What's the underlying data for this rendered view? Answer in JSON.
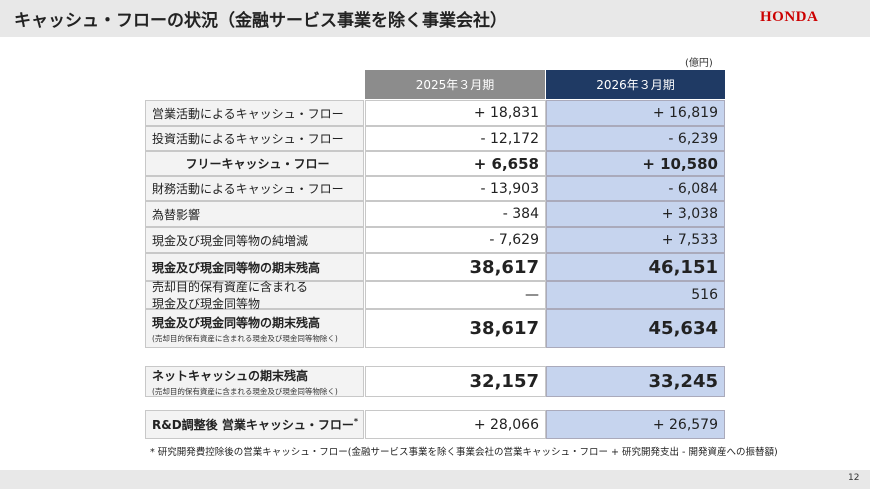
{
  "header": {
    "title": "キャッシュ・フローの状況（金融サービス事業を除く事業会社）",
    "logo": "HONDA"
  },
  "unit": "(億円)",
  "columns": [
    "2025年３月期",
    "2026年３月期"
  ],
  "rows": [
    {
      "label": "営業活動によるキャッシュ・フロー",
      "values": [
        "+ 18,831",
        "+ 16,819"
      ],
      "bold": false
    },
    {
      "label": "投資活動によるキャッシュ・フロー",
      "values": [
        "- 12,172",
        "- 6,239"
      ],
      "bold": false
    },
    {
      "label": "フリーキャッシュ・フロー",
      "values": [
        "+ 6,658",
        "+ 10,580"
      ],
      "bold": true,
      "center": true
    },
    {
      "label": "財務活動によるキャッシュ・フロー",
      "values": [
        "- 13,903",
        "- 6,084"
      ],
      "bold": false
    },
    {
      "label": "為替影響",
      "values": [
        "- 384",
        "+ 3,038"
      ],
      "bold": false
    },
    {
      "label": "現金及び現金同等物の純増減",
      "values": [
        "- 7,629",
        "+ 7,533"
      ],
      "bold": false
    },
    {
      "label": "現金及び現金同等物の期末残高",
      "values": [
        "38,617",
        "46,151"
      ],
      "bold": true
    },
    {
      "label": "売却目的保有資産に含まれる",
      "sublabel": "現金及び現金同等物",
      "values": [
        "—",
        "516"
      ],
      "bold": false
    },
    {
      "label": "現金及び現金同等物の期末残高",
      "note": "(売却目的保有資産に含まれる現金及び現金同等物除く)",
      "values": [
        "38,617",
        "45,634"
      ],
      "bold": true
    },
    {
      "label": "ネットキャッシュの期末残高",
      "note": "(売却目的保有資産に含まれる現金及び現金同等物除く)",
      "values": [
        "32,157",
        "33,245"
      ],
      "bold": true
    },
    {
      "label": "R&D調整後 営業キャッシュ・フロー",
      "label_mark": "*",
      "values": [
        "+ 28,066",
        "+ 26,579"
      ],
      "bold": true,
      "plain_values": true
    }
  ],
  "footnote": "* 研究開発費控除後の営業キャッシュ・フロー(金融サービス事業を除く事業会社の営業キャッシュ・フロー + 研究開発支出 - 開発資産への振替額)",
  "page_number": "12"
}
